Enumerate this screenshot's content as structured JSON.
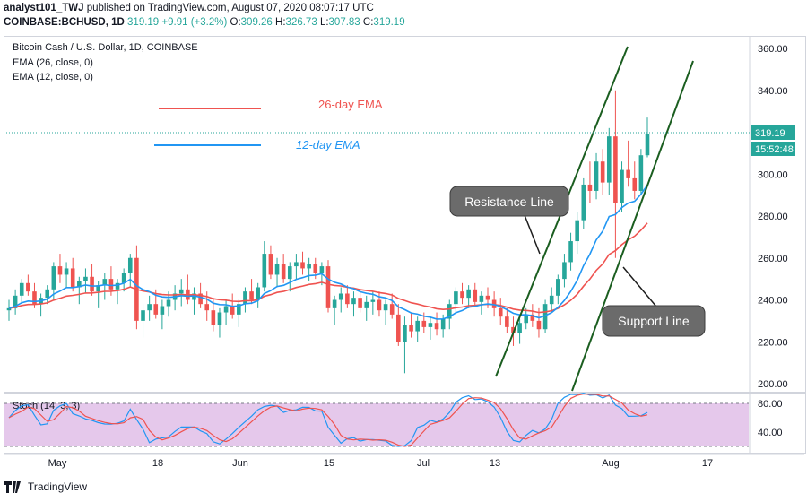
{
  "header": {
    "author": "analyst101_TWJ",
    "published_text": "published on TradingView.com, August 07, 2020 08:07:17 UTC",
    "symbol": "COINBASE:BCHUSD, 1D",
    "last": "319.19",
    "change": "+9.91 (+3.2%)",
    "o_label": "O:",
    "o": "309.26",
    "h_label": "H:",
    "h": "326.73",
    "l_label": "L:",
    "l": "307.83",
    "c_label": "C:",
    "c": "319.19"
  },
  "chart_info": {
    "title": "Bitcoin Cash / U.S. Dollar, 1D, COINBASE",
    "ema1": "EMA (26, close, 0)",
    "ema2": "EMA (12, close, 0)"
  },
  "annotations": {
    "legend_26": "26-day EMA",
    "legend_12": "12-day EMA",
    "resistance": "Resistance Line",
    "support": "Support Line"
  },
  "price_axis": {
    "ticks": [
      "360.00",
      "340.00",
      "320.00",
      "300.00",
      "280.00",
      "260.00",
      "240.00",
      "220.00",
      "200.00"
    ],
    "last_price_label": "319.19",
    "countdown_label": "15:52:48"
  },
  "stoch": {
    "label": "Stoch (14, 3, 3)",
    "ticks": [
      "80.00",
      "40.00"
    ]
  },
  "time_axis": {
    "labels": [
      "May",
      "18",
      "Jun",
      "15",
      "Jul",
      "13",
      "Aug",
      "17"
    ]
  },
  "footer": {
    "brand": "TradingView"
  },
  "colors": {
    "up": "#26a69a",
    "down": "#ef5350",
    "ema26": "#ef5350",
    "ema12": "#2196f3",
    "channel": "#1b5e20",
    "stoch_bg": "#e1bee7",
    "stoch_k": "#2196f3",
    "stoch_d": "#ef5350"
  },
  "chart_data": {
    "type": "candlestick",
    "title": "Bitcoin Cash / U.S. Dollar, 1D, COINBASE",
    "ylim": [
      195,
      365
    ],
    "x_labels": [
      "May",
      "18",
      "Jun",
      "15",
      "Jul",
      "13",
      "Aug",
      "17"
    ],
    "candles_ohlc": [
      [
        235,
        240,
        230,
        236
      ],
      [
        236,
        245,
        233,
        242
      ],
      [
        242,
        250,
        238,
        248
      ],
      [
        248,
        252,
        242,
        244
      ],
      [
        244,
        248,
        236,
        238
      ],
      [
        238,
        243,
        232,
        241
      ],
      [
        241,
        247,
        238,
        245
      ],
      [
        245,
        258,
        240,
        256
      ],
      [
        256,
        262,
        248,
        252
      ],
      [
        252,
        258,
        246,
        255
      ],
      [
        255,
        260,
        244,
        246
      ],
      [
        246,
        251,
        238,
        249
      ],
      [
        249,
        255,
        243,
        251
      ],
      [
        251,
        257,
        242,
        244
      ],
      [
        244,
        249,
        236,
        247
      ],
      [
        247,
        253,
        240,
        250
      ],
      [
        250,
        256,
        242,
        245
      ],
      [
        245,
        250,
        238,
        248
      ],
      [
        248,
        255,
        244,
        253
      ],
      [
        253,
        262,
        246,
        260
      ],
      [
        260,
        266,
        226,
        230
      ],
      [
        230,
        238,
        222,
        235
      ],
      [
        235,
        242,
        230,
        238
      ],
      [
        238,
        245,
        231,
        233
      ],
      [
        233,
        240,
        226,
        237
      ],
      [
        237,
        244,
        232,
        240
      ],
      [
        240,
        247,
        235,
        243
      ],
      [
        243,
        250,
        237,
        245
      ],
      [
        245,
        252,
        238,
        240
      ],
      [
        240,
        246,
        233,
        243
      ],
      [
        243,
        248,
        236,
        238
      ],
      [
        238,
        244,
        230,
        235
      ],
      [
        235,
        241,
        225,
        228
      ],
      [
        228,
        236,
        222,
        234
      ],
      [
        234,
        240,
        228,
        237
      ],
      [
        237,
        243,
        231,
        233
      ],
      [
        233,
        240,
        227,
        238
      ],
      [
        238,
        246,
        234,
        244
      ],
      [
        244,
        250,
        238,
        240
      ],
      [
        240,
        248,
        236,
        246
      ],
      [
        246,
        268,
        244,
        262
      ],
      [
        262,
        266,
        250,
        252
      ],
      [
        252,
        260,
        246,
        257
      ],
      [
        257,
        262,
        248,
        250
      ],
      [
        250,
        258,
        244,
        256
      ],
      [
        256,
        262,
        250,
        258
      ],
      [
        258,
        263,
        252,
        255
      ],
      [
        255,
        260,
        249,
        257
      ],
      [
        257,
        260,
        250,
        253
      ],
      [
        253,
        258,
        247,
        256
      ],
      [
        256,
        259,
        234,
        236
      ],
      [
        236,
        242,
        228,
        240
      ],
      [
        240,
        246,
        234,
        243
      ],
      [
        243,
        247,
        236,
        238
      ],
      [
        238,
        244,
        232,
        241
      ],
      [
        241,
        245,
        234,
        236
      ],
      [
        236,
        242,
        230,
        239
      ],
      [
        239,
        244,
        233,
        240
      ],
      [
        240,
        244,
        232,
        235
      ],
      [
        235,
        240,
        228,
        238
      ],
      [
        238,
        243,
        231,
        233
      ],
      [
        233,
        238,
        218,
        220
      ],
      [
        220,
        232,
        205,
        228
      ],
      [
        228,
        234,
        222,
        225
      ],
      [
        225,
        232,
        220,
        230
      ],
      [
        230,
        234,
        224,
        227
      ],
      [
        227,
        232,
        221,
        229
      ],
      [
        229,
        234,
        223,
        226
      ],
      [
        226,
        233,
        222,
        231
      ],
      [
        231,
        240,
        226,
        238
      ],
      [
        238,
        246,
        234,
        244
      ],
      [
        244,
        248,
        238,
        241
      ],
      [
        241,
        247,
        236,
        245
      ],
      [
        245,
        248,
        237,
        239
      ],
      [
        239,
        244,
        233,
        242
      ],
      [
        242,
        246,
        236,
        240
      ],
      [
        240,
        244,
        232,
        236
      ],
      [
        236,
        241,
        228,
        232
      ],
      [
        232,
        236,
        224,
        227
      ],
      [
        227,
        232,
        218,
        224
      ],
      [
        224,
        231,
        219,
        229
      ],
      [
        229,
        236,
        226,
        233
      ],
      [
        233,
        238,
        227,
        230
      ],
      [
        230,
        236,
        222,
        226
      ],
      [
        226,
        240,
        224,
        238
      ],
      [
        238,
        246,
        234,
        242
      ],
      [
        242,
        252,
        238,
        250
      ],
      [
        250,
        262,
        246,
        258
      ],
      [
        258,
        272,
        254,
        268
      ],
      [
        268,
        282,
        262,
        278
      ],
      [
        278,
        298,
        274,
        295
      ],
      [
        295,
        306,
        286,
        292
      ],
      [
        292,
        310,
        288,
        306
      ],
      [
        306,
        312,
        290,
        296
      ],
      [
        296,
        322,
        290,
        318
      ],
      [
        318,
        340,
        260,
        286
      ],
      [
        286,
        306,
        282,
        302
      ],
      [
        302,
        316,
        294,
        298
      ],
      [
        298,
        306,
        288,
        292
      ],
      [
        292,
        312,
        290,
        309
      ],
      [
        309,
        327,
        308,
        319
      ]
    ],
    "series": [
      {
        "name": "26-day EMA",
        "values_desc": "slow moving average, ~238 in May rising to ~272 in early Aug"
      },
      {
        "name": "12-day EMA",
        "values_desc": "fast moving average, ~240 in May rising to ~295 in early Aug"
      }
    ],
    "stoch_ylim": [
      20,
      95
    ],
    "stoch_ticks": [
      80,
      40
    ]
  }
}
